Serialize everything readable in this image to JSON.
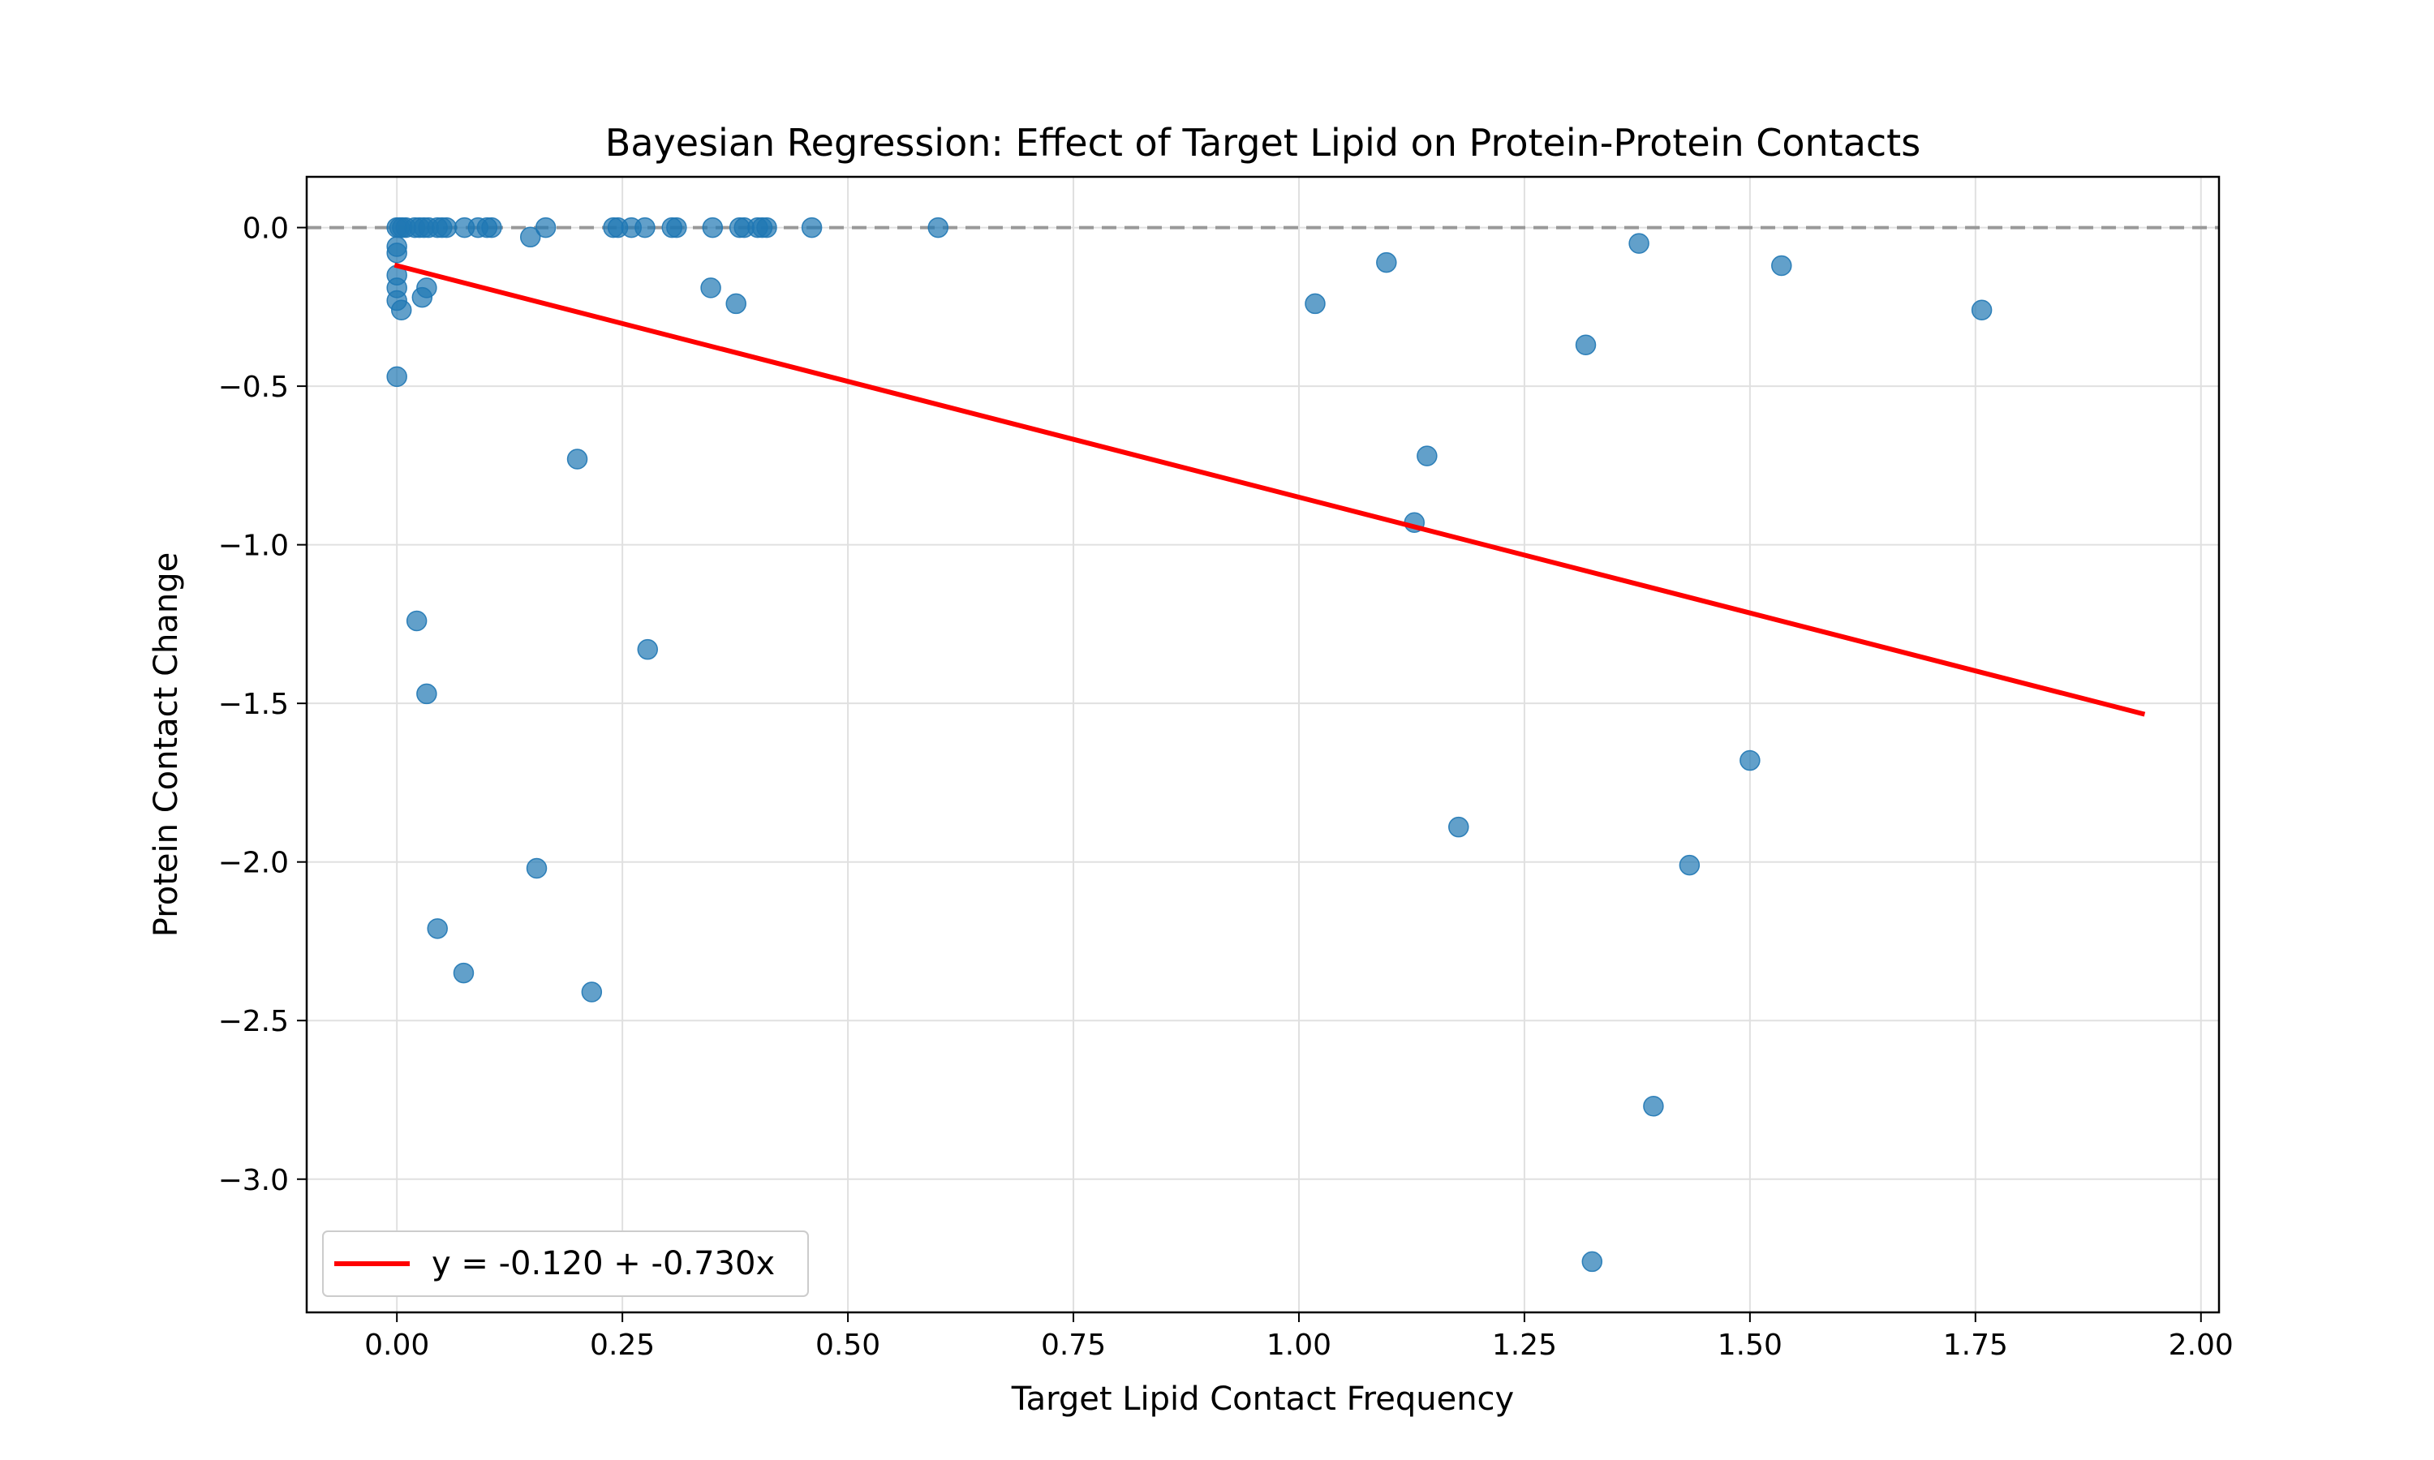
{
  "chart_data": {
    "type": "scatter",
    "title": "Bayesian Regression: Effect of Target Lipid on Protein-Protein Contacts",
    "xlabel": "Target Lipid Contact Frequency",
    "ylabel": "Protein Contact Change",
    "xlim": [
      -0.1,
      2.02
    ],
    "ylim": [
      -3.42,
      0.16
    ],
    "xticks": [
      0.0,
      0.25,
      0.5,
      0.75,
      1.0,
      1.25,
      1.5,
      1.75,
      2.0
    ],
    "xtick_labels": [
      "0.00",
      "0.25",
      "0.50",
      "0.75",
      "1.00",
      "1.25",
      "1.50",
      "1.75",
      "2.00"
    ],
    "yticks": [
      0.0,
      -0.5,
      -1.0,
      -1.5,
      -2.0,
      -2.5,
      -3.0
    ],
    "ytick_labels": [
      "0.0",
      "−0.5",
      "−1.0",
      "−1.5",
      "−2.0",
      "−2.5",
      "−3.0"
    ],
    "grid": true,
    "legend_placement": "bottom-left",
    "colors": {
      "points": "#1f77b4",
      "fit_line": "#ff0000",
      "zero_line": "#999999",
      "grid": "#e0e0e0"
    },
    "zero_reference_line": 0.0,
    "points": [
      {
        "x": 0.0,
        "y": 0.0
      },
      {
        "x": 0.003,
        "y": 0.0
      },
      {
        "x": 0.006,
        "y": 0.0
      },
      {
        "x": 0.01,
        "y": 0.0
      },
      {
        "x": 0.02,
        "y": 0.0
      },
      {
        "x": 0.025,
        "y": 0.0
      },
      {
        "x": 0.03,
        "y": 0.0
      },
      {
        "x": 0.035,
        "y": 0.0
      },
      {
        "x": 0.045,
        "y": 0.0
      },
      {
        "x": 0.05,
        "y": 0.0
      },
      {
        "x": 0.055,
        "y": 0.0
      },
      {
        "x": 0.075,
        "y": 0.0
      },
      {
        "x": 0.09,
        "y": 0.0
      },
      {
        "x": 0.1,
        "y": 0.0
      },
      {
        "x": 0.105,
        "y": 0.0
      },
      {
        "x": 0.165,
        "y": 0.0
      },
      {
        "x": 0.24,
        "y": 0.0
      },
      {
        "x": 0.245,
        "y": 0.0
      },
      {
        "x": 0.26,
        "y": 0.0
      },
      {
        "x": 0.275,
        "y": 0.0
      },
      {
        "x": 0.305,
        "y": 0.0
      },
      {
        "x": 0.31,
        "y": 0.0
      },
      {
        "x": 0.35,
        "y": 0.0
      },
      {
        "x": 0.38,
        "y": 0.0
      },
      {
        "x": 0.385,
        "y": 0.0
      },
      {
        "x": 0.4,
        "y": 0.0
      },
      {
        "x": 0.405,
        "y": 0.0
      },
      {
        "x": 0.41,
        "y": 0.0
      },
      {
        "x": 0.46,
        "y": 0.0
      },
      {
        "x": 0.6,
        "y": 0.0
      },
      {
        "x": 0.0,
        "y": -0.06
      },
      {
        "x": 0.0,
        "y": -0.08
      },
      {
        "x": 0.0,
        "y": -0.15
      },
      {
        "x": 0.0,
        "y": -0.19
      },
      {
        "x": 0.0,
        "y": -0.23
      },
      {
        "x": 0.005,
        "y": -0.26
      },
      {
        "x": 0.028,
        "y": -0.22
      },
      {
        "x": 0.033,
        "y": -0.19
      },
      {
        "x": 0.0,
        "y": -0.47
      },
      {
        "x": 0.148,
        "y": -0.03
      },
      {
        "x": 0.348,
        "y": -0.19
      },
      {
        "x": 0.376,
        "y": -0.24
      },
      {
        "x": 0.2,
        "y": -0.73
      },
      {
        "x": 0.022,
        "y": -1.24
      },
      {
        "x": 0.033,
        "y": -1.47
      },
      {
        "x": 0.278,
        "y": -1.33
      },
      {
        "x": 0.155,
        "y": -2.02
      },
      {
        "x": 0.045,
        "y": -2.21
      },
      {
        "x": 0.074,
        "y": -2.35
      },
      {
        "x": 0.216,
        "y": -2.41
      },
      {
        "x": 1.018,
        "y": -0.24
      },
      {
        "x": 1.097,
        "y": -0.11
      },
      {
        "x": 1.377,
        "y": -0.05
      },
      {
        "x": 1.535,
        "y": -0.12
      },
      {
        "x": 1.757,
        "y": -0.26
      },
      {
        "x": 1.318,
        "y": -0.37
      },
      {
        "x": 1.142,
        "y": -0.72
      },
      {
        "x": 1.128,
        "y": -0.93
      },
      {
        "x": 1.5,
        "y": -1.68
      },
      {
        "x": 1.177,
        "y": -1.89
      },
      {
        "x": 1.433,
        "y": -2.01
      },
      {
        "x": 1.393,
        "y": -2.77
      },
      {
        "x": 1.325,
        "y": -3.26
      }
    ],
    "fit_line": {
      "name": "y = -0.120 + -0.730x",
      "intercept": -0.12,
      "slope": -0.73,
      "x_range": [
        0.0,
        1.935
      ]
    }
  }
}
